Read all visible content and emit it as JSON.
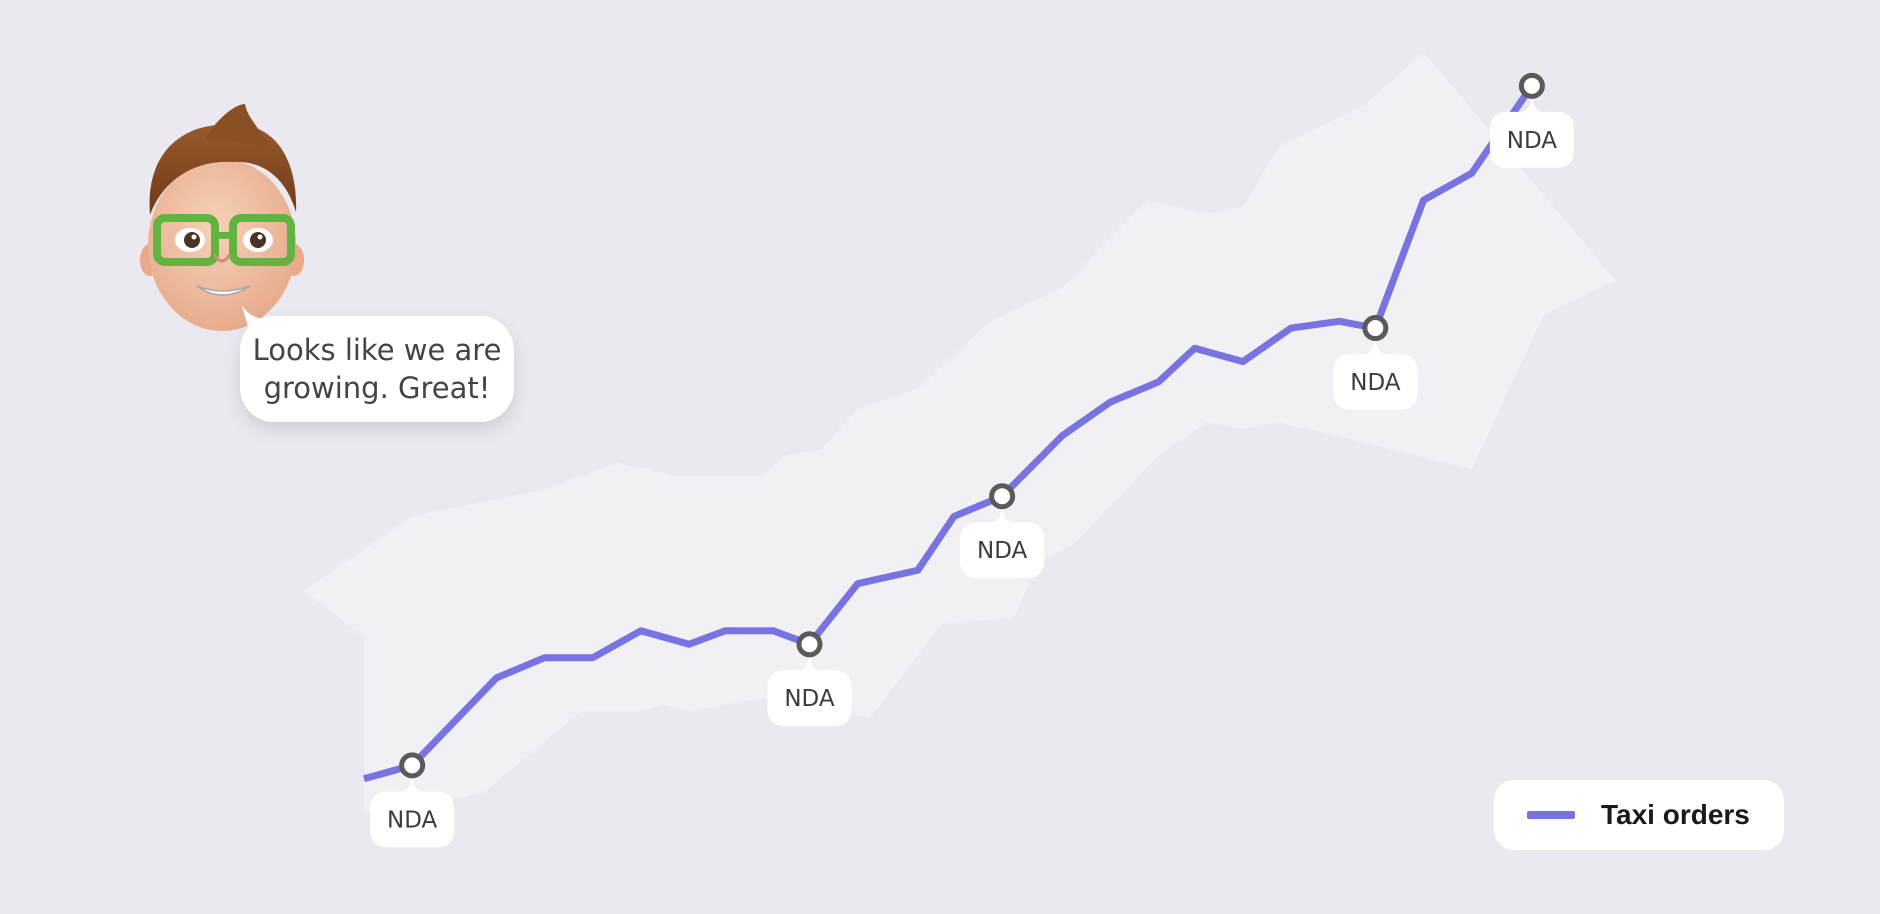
{
  "speech_bubble": {
    "line1": "Looks like we are",
    "line2": "growing. Great!"
  },
  "avatar": {
    "icon": "memoji-avatar-icon"
  },
  "legend": {
    "label": "Taxi orders",
    "color": "#7774e2"
  },
  "colors": {
    "background": "#eae9ef",
    "band": "#f1f0f5",
    "line": "#7774e2",
    "marker_stroke": "#5a5a5a"
  },
  "chart_data": {
    "type": "line",
    "title": "",
    "xlabel": "",
    "ylabel": "",
    "grid": false,
    "legend_position": "bottom-right",
    "series": [
      {
        "name": "Taxi orders",
        "points": [
          [
            0,
            14
          ],
          [
            4,
            16
          ],
          [
            11,
            29
          ],
          [
            15,
            32
          ],
          [
            19,
            32
          ],
          [
            23,
            36
          ],
          [
            27,
            34
          ],
          [
            30,
            36
          ],
          [
            34,
            36
          ],
          [
            37,
            34
          ],
          [
            41,
            43
          ],
          [
            46,
            45
          ],
          [
            49,
            53
          ],
          [
            53,
            56
          ],
          [
            58,
            65
          ],
          [
            62,
            70
          ],
          [
            66,
            73
          ],
          [
            69,
            78
          ],
          [
            73,
            76
          ],
          [
            77,
            81
          ],
          [
            81,
            82
          ],
          [
            84,
            81
          ],
          [
            88,
            100
          ],
          [
            92,
            104
          ],
          [
            97,
            117
          ]
        ],
        "band_upper": [
          [
            -5,
            42
          ],
          [
            4,
            53
          ],
          [
            15,
            57
          ],
          [
            21,
            61
          ],
          [
            26,
            59
          ],
          [
            33,
            59
          ],
          [
            35,
            62
          ],
          [
            38,
            63
          ],
          [
            41,
            69
          ],
          [
            46,
            72
          ],
          [
            52,
            82
          ],
          [
            58,
            87
          ],
          [
            65,
            100
          ],
          [
            70,
            98
          ],
          [
            73,
            99
          ],
          [
            76,
            108
          ],
          [
            83,
            114
          ],
          [
            88,
            122
          ],
          [
            104,
            88
          ],
          [
            98,
            83
          ],
          [
            92,
            60
          ],
          [
            76,
            67
          ],
          [
            73,
            66
          ],
          [
            70,
            67
          ],
          [
            66,
            62
          ],
          [
            59,
            49
          ],
          [
            56,
            46
          ],
          [
            54,
            38
          ],
          [
            48,
            37
          ],
          [
            42,
            23
          ],
          [
            33,
            26
          ],
          [
            27,
            24
          ],
          [
            25,
            25
          ],
          [
            23,
            24
          ],
          [
            18,
            24
          ],
          [
            10,
            12
          ],
          [
            3,
            9
          ],
          [
            0,
            9
          ],
          [
            0,
            35
          ]
        ]
      }
    ],
    "annotations": [
      {
        "x": 4,
        "y": 16,
        "label": "NDA"
      },
      {
        "x": 37,
        "y": 34,
        "label": "NDA"
      },
      {
        "x": 53,
        "y": 56,
        "label": "NDA"
      },
      {
        "x": 84,
        "y": 81,
        "label": "NDA"
      },
      {
        "x": 97,
        "y": 117,
        "label": "NDA"
      }
    ]
  }
}
